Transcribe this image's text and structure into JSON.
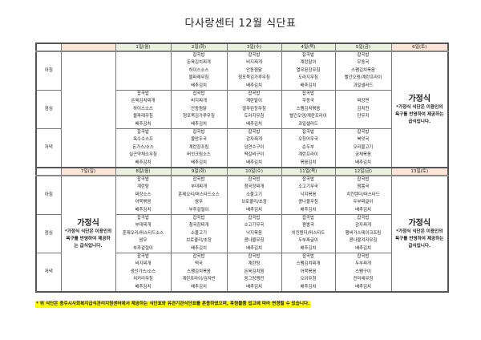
{
  "title": "다사랑센터 12월 식단표",
  "gajeong": {
    "title": "가정식",
    "note": "*가정식 식단은 이용인의 욕구를 반영하여 제공하는 급식입니다."
  },
  "footnote": "* 위 식단은 충주시사회복지급식관리지원센터에서 제공하는 식단표와 유관기관식단표를 혼용하였으며, 후원물품 입고에 따라 변경될 수 있습니다.",
  "colors": {
    "weekday_header": "#ebf1de",
    "weekend_header": "#fce4d6",
    "footnote_highlight": "#ffff00"
  },
  "weeks": [
    {
      "headers": [
        "",
        "1일(월)",
        "2일(화)",
        "3일(수)",
        "4일(목)",
        "5일(금)",
        "6일(토)"
      ],
      "header_styles": [
        "peach",
        "green",
        "green",
        "green",
        "green",
        "green",
        "peach"
      ],
      "special_cols": {
        "0": "blank",
        "6": "gajeong"
      },
      "meals": [
        {
          "label": "아침",
          "cells": [
            [],
            [],
            [
              "잡곡밥",
              "돈육김치찌개",
              "하이스소스",
              "물파래무침",
              "배추김치"
            ],
            [
              "잡곡밥",
              "비지찌개",
              "안동찜닭",
              "청포묵김가루무침",
              "배추김치"
            ],
            [
              "잡곡밥",
              "계란말이",
              "열무된장무침",
              "도라지무침",
              "배추김치"
            ],
            [
              "잡곡밥",
              "우동국",
              "스팸김치볶음",
              "빨간오뎅/계란프라이",
              "과일샐러드"
            ],
            []
          ]
        },
        {
          "label": "점심",
          "cells": [
            [],
            [
              "잡곡밥",
              "돈육김치찌개",
              "하이스소스",
              "물파래무침",
              "배추김치"
            ],
            [
              "잡곡밥",
              "비지찌개",
              "안동찜닭",
              "청포묵김가루무침",
              "배추김치"
            ],
            [
              "잡곡밥",
              "계란말이",
              "열무된장무침",
              "도라지무침",
              "배추김치"
            ],
            [
              "잡곡밥",
              "우동국",
              "스팸김치볶음",
              "빨간오뎅/계란프라이",
              "과일샐러드"
            ],
            [
              "짜장면",
              "김치전",
              "단무지"
            ],
            []
          ]
        },
        {
          "label": "저녁",
          "cells": [
            [],
            [
              "잡곡밥",
              "옥수수스프",
              "돈가스/소스",
              "실곤약채소무침",
              "배추김치"
            ],
            [
              "잡곡밥",
              "물만두국",
              "계란장조림",
              "버섯크림소스",
              "배추김치"
            ],
            [
              "잡곡밥",
              "감자찌개",
              "임연수구이",
              "떡갈비구이",
              "배추김치"
            ],
            [
              "잡곡밥",
              "오징어무국",
              "순두부",
              "계란프라이",
              "볶음김치"
            ],
            [
              "잡곡밥",
              "북엇국",
              "오리불고기",
              "궁채볶음",
              "배추김치"
            ],
            []
          ]
        }
      ]
    },
    {
      "headers": [
        "7일(일)",
        "8일(월)",
        "9일(화)",
        "10일(수)",
        "11일(목)",
        "12일(금)",
        "13일(토)"
      ],
      "header_styles": [
        "peach",
        "green",
        "green",
        "green",
        "green",
        "green",
        "peach"
      ],
      "special_cols": {
        "0": "gajeong",
        "6": "gajeong"
      },
      "meals": [
        {
          "label": "아침",
          "cells": [
            [],
            [
              "잡곡밥",
              "계란탕",
              "짜장소스",
              "어묵볶음",
              "배추김치"
            ],
            [
              "잡곡밥",
              "부대찌개",
              "훈제오리/머스타드소스",
              "쌈무",
              "부추겉절이"
            ],
            [
              "잡곡밥",
              "청국장찌개",
              "소불고기",
              "브로콜리/초장",
              "배추김치"
            ],
            [
              "잡곡밥",
              "소고기무국",
              "낙지볶음",
              "콩나물무침",
              "배추김치"
            ],
            [
              "잡곡밥",
              "짬뽕국",
              "치킨텐더/머스타드",
              "두부짜글이",
              "배추김치"
            ],
            []
          ]
        },
        {
          "label": "점심",
          "cells": [
            [],
            [
              "잡곡밥",
              "부대찌개",
              "훈제오리/머스타드소스",
              "쌈무",
              "부추겉절이"
            ],
            [
              "잡곡밥",
              "청국장찌개",
              "소불고기",
              "브로콜리/초장",
              "배추김치"
            ],
            [
              "잡곡밥",
              "소고기무국",
              "낙지볶음",
              "콩나물무침",
              "배추김치"
            ],
            [
              "잡곡밥",
              "짬뽕국",
              "치킨텐더/머스타드",
              "두부짜글이",
              "배추김치"
            ],
            [
              "잡곡밥",
              "감자찌개",
              "햄버거스테이크조림",
              "콩나물겨자무침",
              "배추김치"
            ],
            []
          ]
        },
        {
          "label": "저녁",
          "cells": [
            [],
            [
              "잡곡밥",
              "비지찌개",
              "생선가스/소스",
              "치커리무침",
              "배추김치"
            ],
            [
              "잡곡밥",
              "떡국",
              "스팸김치볶음",
              "계란프라이/김자반",
              "배추김치"
            ],
            [
              "잡곡밥",
              "계란탕",
              "돈육김치찜",
              "동그랑땡전",
              "배추김치"
            ],
            [
              "잡곡밥",
              "스팸김치찌개",
              "어묵볶음",
              "오이무침",
              "배추김치"
            ],
            [
              "잡곡밥",
              "두부찌개",
              "스팸구이",
              "진미채무침",
              "배추김치"
            ],
            []
          ]
        }
      ]
    }
  ]
}
